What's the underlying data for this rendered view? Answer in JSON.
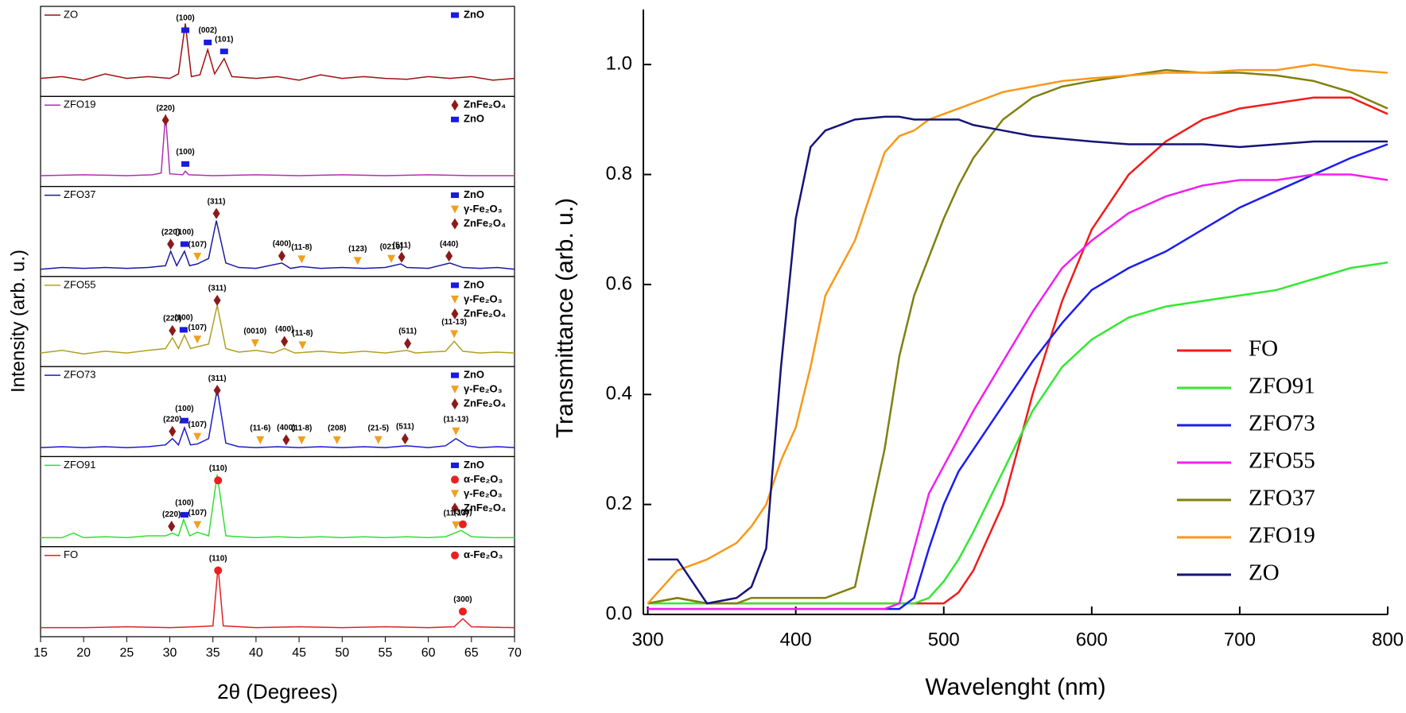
{
  "chart_data": [
    {
      "type": "xrd-stack",
      "y_label": "Intensity (arb. u.)",
      "x_label": "2θ (Degrees)",
      "xlim": [
        15,
        70
      ],
      "xticks": [
        15,
        20,
        25,
        30,
        35,
        40,
        45,
        50,
        55,
        60,
        65,
        70
      ],
      "markers": {
        "ZnO": {
          "shape": "square",
          "color": "#1a1ae0"
        },
        "ZnFe₂O₄": {
          "shape": "diamond",
          "color": "#8b1a1a"
        },
        "γ-Fe₂O₃": {
          "shape": "triangle",
          "color": "#f0a020"
        },
        "α-Fe₂O₃": {
          "shape": "circle",
          "color": "#e82020"
        }
      },
      "panels": [
        {
          "name": "ZO",
          "color": "#a01010",
          "x": [
            15,
            17.5,
            20,
            22.5,
            25,
            27.5,
            30,
            31,
            31.8,
            32.5,
            33.5,
            34.4,
            35.2,
            36.3,
            37.2,
            40,
            42.5,
            45,
            47.5,
            50,
            52.5,
            55,
            57.5,
            60,
            62.5,
            65,
            67.5,
            70
          ],
          "values": [
            0.2,
            0.22,
            0.18,
            0.25,
            0.2,
            0.22,
            0.2,
            0.25,
            0.81,
            0.22,
            0.24,
            0.52,
            0.25,
            0.42,
            0.22,
            0.2,
            0.22,
            0.18,
            0.24,
            0.2,
            0.22,
            0.2,
            0.19,
            0.22,
            0.2,
            0.22,
            0.18,
            0.2
          ],
          "legend": [
            "ZnO"
          ],
          "annotations": [
            {
              "label": "(100)",
              "x": 31.8,
              "phase": "ZnO"
            },
            {
              "label": "(002)",
              "x": 34.4,
              "phase": "ZnO"
            },
            {
              "label": "(101)",
              "x": 36.3,
              "phase": "ZnO"
            }
          ]
        },
        {
          "name": "ZFO19",
          "color": "#b030b0",
          "x": [
            15,
            20,
            25,
            28,
            29,
            29.5,
            30,
            31.5,
            31.8,
            32.2,
            35,
            40,
            45,
            50,
            55,
            60,
            65,
            70
          ],
          "values": [
            0.12,
            0.13,
            0.12,
            0.13,
            0.15,
            0.8,
            0.14,
            0.13,
            0.17,
            0.13,
            0.12,
            0.13,
            0.12,
            0.13,
            0.12,
            0.13,
            0.12,
            0.12
          ],
          "legend": [
            "ZnFe₂O₄",
            "ZnO"
          ],
          "annotations": [
            {
              "label": "(220)",
              "x": 29.5,
              "phase": "ZnFe₂O₄"
            },
            {
              "label": "(100)",
              "x": 31.8,
              "phase": "ZnO"
            }
          ]
        },
        {
          "name": "ZFO37",
          "color": "#1a1aa0",
          "x": [
            15,
            17.5,
            20,
            22.5,
            25,
            27.5,
            29.5,
            30.1,
            30.8,
            31.7,
            32.3,
            33.2,
            34.5,
            35.4,
            36.5,
            38,
            40,
            43,
            44,
            45.3,
            47.5,
            50,
            52.5,
            55,
            56.8,
            57.5,
            60,
            62.5,
            64,
            66,
            68,
            70
          ],
          "values": [
            0.08,
            0.1,
            0.09,
            0.1,
            0.09,
            0.1,
            0.12,
            0.28,
            0.12,
            0.28,
            0.12,
            0.14,
            0.2,
            0.62,
            0.15,
            0.1,
            0.09,
            0.15,
            0.09,
            0.11,
            0.09,
            0.1,
            0.09,
            0.1,
            0.14,
            0.1,
            0.09,
            0.15,
            0.1,
            0.09,
            0.1,
            0.08
          ],
          "legend": [
            "ZnO",
            "γ-Fe₂O₃",
            "ZnFe₂O₄"
          ],
          "annotations": [
            {
              "label": "(220)",
              "x": 30.1,
              "phase": "ZnFe₂O₄"
            },
            {
              "label": "(100)",
              "x": 31.7,
              "phase": "ZnO"
            },
            {
              "label": "(107)",
              "x": 33.2,
              "phase": "γ-Fe₂O₃"
            },
            {
              "label": "(311)",
              "x": 35.4,
              "phase": "ZnFe₂O₄"
            },
            {
              "label": "(400)",
              "x": 43,
              "phase": "ZnFe₂O₄"
            },
            {
              "label": "(11-8)",
              "x": 45.3,
              "phase": "γ-Fe₂O₃"
            },
            {
              "label": "(123)",
              "x": 51.8,
              "phase": "γ-Fe₂O₃"
            },
            {
              "label": "(0210)",
              "x": 55.7,
              "phase": "γ-Fe₂O₃"
            },
            {
              "label": "(511)",
              "x": 56.9,
              "phase": "ZnFe₂O₄"
            },
            {
              "label": "(440)",
              "x": 62.4,
              "phase": "ZnFe₂O₄"
            }
          ]
        },
        {
          "name": "ZFO55",
          "color": "#b0a020",
          "x": [
            15,
            17.5,
            20,
            22.5,
            25,
            27.5,
            29.5,
            30.3,
            31,
            31.7,
            32.4,
            33.2,
            34.5,
            35.5,
            36.5,
            38,
            40,
            42,
            43.3,
            44.5,
            47.5,
            50,
            52.5,
            55,
            57.5,
            58.5,
            60,
            62,
            63,
            64,
            66,
            68,
            70
          ],
          "values": [
            0.15,
            0.18,
            0.14,
            0.17,
            0.15,
            0.18,
            0.2,
            0.32,
            0.2,
            0.35,
            0.2,
            0.22,
            0.25,
            0.68,
            0.2,
            0.16,
            0.18,
            0.15,
            0.2,
            0.15,
            0.17,
            0.15,
            0.17,
            0.15,
            0.18,
            0.15,
            0.16,
            0.17,
            0.28,
            0.17,
            0.15,
            0.16,
            0.15
          ],
          "legend": [
            "ZnO",
            "γ-Fe₂O₃",
            "ZnFe₂O₄"
          ],
          "annotations": [
            {
              "label": "(220)",
              "x": 30.3,
              "phase": "ZnFe₂O₄"
            },
            {
              "label": "(100)",
              "x": 31.6,
              "phase": "ZnO"
            },
            {
              "label": "(107)",
              "x": 33.2,
              "phase": "γ-Fe₂O₃"
            },
            {
              "label": "(311)",
              "x": 35.5,
              "phase": "ZnFe₂O₄"
            },
            {
              "label": "(0010)",
              "x": 39.9,
              "phase": "γ-Fe₂O₃"
            },
            {
              "label": "(400)",
              "x": 43.3,
              "phase": "ZnFe₂O₄"
            },
            {
              "label": "(11-8)",
              "x": 45.4,
              "phase": "γ-Fe₂O₃"
            },
            {
              "label": "(511)",
              "x": 57.6,
              "phase": "ZnFe₂O₄"
            },
            {
              "label": "(11-13)",
              "x": 63,
              "phase": "γ-Fe₂O₃"
            }
          ]
        },
        {
          "name": "ZFO73",
          "color": "#1a1ad0",
          "x": [
            15,
            17.5,
            20,
            22.5,
            25,
            27.5,
            29.5,
            30.3,
            31,
            31.7,
            32.4,
            33.2,
            34.5,
            35.5,
            36.5,
            38,
            40,
            42.5,
            45,
            47.5,
            50,
            52.5,
            55,
            57.5,
            60,
            62,
            63.2,
            64.5,
            66,
            68,
            70
          ],
          "values": [
            0.1,
            0.11,
            0.1,
            0.11,
            0.1,
            0.11,
            0.13,
            0.2,
            0.13,
            0.32,
            0.13,
            0.14,
            0.2,
            0.75,
            0.15,
            0.11,
            0.1,
            0.11,
            0.1,
            0.11,
            0.1,
            0.11,
            0.1,
            0.12,
            0.1,
            0.12,
            0.2,
            0.12,
            0.1,
            0.11,
            0.1
          ],
          "legend": [
            "ZnO",
            "γ-Fe₂O₃",
            "ZnFe₂O₄"
          ],
          "annotations": [
            {
              "label": "(220)",
              "x": 30.3,
              "phase": "ZnFe₂O₄"
            },
            {
              "label": "(100)",
              "x": 31.7,
              "phase": "ZnO"
            },
            {
              "label": "(107)",
              "x": 33.2,
              "phase": "γ-Fe₂O₃"
            },
            {
              "label": "(311)",
              "x": 35.5,
              "phase": "ZnFe₂O₄"
            },
            {
              "label": "(11-6)",
              "x": 40.5,
              "phase": "γ-Fe₂O₃"
            },
            {
              "label": "(400)",
              "x": 43.5,
              "phase": "ZnFe₂O₄"
            },
            {
              "label": "(11-8)",
              "x": 45.3,
              "phase": "γ-Fe₂O₃"
            },
            {
              "label": "(208)",
              "x": 49.4,
              "phase": "γ-Fe₂O₃"
            },
            {
              "label": "(21-5)",
              "x": 54.2,
              "phase": "γ-Fe₂O₃"
            },
            {
              "label": "(511)",
              "x": 57.3,
              "phase": "ZnFe₂O₄"
            },
            {
              "label": "(11-13)",
              "x": 63.2,
              "phase": "γ-Fe₂O₃"
            }
          ]
        },
        {
          "name": "ZFO91",
          "color": "#30e030",
          "x": [
            15,
            17.5,
            18.8,
            20,
            22.5,
            25,
            27.5,
            29.5,
            30.3,
            31,
            31.6,
            32.3,
            33.2,
            34.5,
            35.5,
            36.5,
            38,
            40,
            42.5,
            45,
            47.5,
            50,
            52.5,
            55,
            57.5,
            60,
            62,
            63.8,
            65,
            67.5,
            70
          ],
          "values": [
            0.1,
            0.1,
            0.15,
            0.1,
            0.11,
            0.1,
            0.12,
            0.12,
            0.15,
            0.12,
            0.3,
            0.12,
            0.16,
            0.12,
            0.8,
            0.12,
            0.11,
            0.1,
            0.11,
            0.1,
            0.11,
            0.1,
            0.11,
            0.1,
            0.11,
            0.1,
            0.11,
            0.18,
            0.11,
            0.1,
            0.1
          ],
          "legend": [
            "ZnO",
            "α-Fe₂O₃",
            "γ-Fe₂O₃",
            "ZnFe₂O₄"
          ],
          "annotations": [
            {
              "label": "(220)",
              "x": 30.2,
              "phase": "ZnFe₂O₄"
            },
            {
              "label": "(100)",
              "x": 31.7,
              "phase": "ZnO"
            },
            {
              "label": "(107)",
              "x": 33.2,
              "phase": "γ-Fe₂O₃"
            },
            {
              "label": "(110)",
              "x": 35.6,
              "phase": "α-Fe₂O₃"
            },
            {
              "label": "(11-13)",
              "x": 63.2,
              "phase": "γ-Fe₂O₃"
            },
            {
              "label": "(300)",
              "x": 64,
              "phase": "α-Fe₂O₃"
            }
          ]
        },
        {
          "name": "FO",
          "color": "#e02020",
          "x": [
            15,
            20,
            25,
            30,
            33,
            35,
            35.6,
            36.2,
            40,
            45,
            50,
            55,
            60,
            63,
            64,
            65,
            70
          ],
          "values": [
            0.1,
            0.1,
            0.11,
            0.1,
            0.11,
            0.12,
            0.78,
            0.12,
            0.1,
            0.11,
            0.1,
            0.11,
            0.1,
            0.11,
            0.2,
            0.11,
            0.1
          ],
          "legend": [
            "α-Fe₂O₃"
          ],
          "annotations": [
            {
              "label": "(110)",
              "x": 35.6,
              "phase": "α-Fe₂O₃"
            },
            {
              "label": "(300)",
              "x": 64,
              "phase": "α-Fe₂O₃"
            }
          ]
        }
      ]
    },
    {
      "type": "line",
      "x_label": "Wavelenght (nm)",
      "y_label": "Transmittance (arb. u.)",
      "xlim": [
        297,
        800
      ],
      "ylim": [
        0,
        1.1
      ],
      "xticks": [
        300,
        400,
        500,
        600,
        700,
        800
      ],
      "yticks": [
        {
          "value": 0,
          "label": "0.0"
        },
        0.2,
        0.4,
        0.6,
        0.8,
        {
          "value": 1,
          "label": "1.0"
        }
      ],
      "legend": "lower right",
      "x": [
        300,
        320,
        340,
        360,
        370,
        380,
        390,
        400,
        410,
        420,
        440,
        460,
        470,
        480,
        490,
        500,
        510,
        520,
        540,
        560,
        580,
        600,
        625,
        650,
        675,
        700,
        725,
        750,
        775,
        800
      ],
      "series": [
        {
          "name": "FO",
          "color": "#f01c1c",
          "values": [
            0.02,
            0.03,
            0.02,
            0.02,
            0.02,
            0.02,
            0.02,
            0.02,
            0.02,
            0.02,
            0.02,
            0.02,
            0.02,
            0.02,
            0.02,
            0.02,
            0.04,
            0.08,
            0.2,
            0.4,
            0.57,
            0.7,
            0.8,
            0.86,
            0.9,
            0.92,
            0.93,
            0.94,
            0.94,
            0.91
          ]
        },
        {
          "name": "ZFO91",
          "color": "#33e833",
          "values": [
            0.02,
            0.02,
            0.02,
            0.02,
            0.02,
            0.02,
            0.02,
            0.02,
            0.02,
            0.02,
            0.02,
            0.02,
            0.02,
            0.02,
            0.03,
            0.06,
            0.1,
            0.15,
            0.26,
            0.37,
            0.45,
            0.5,
            0.54,
            0.56,
            0.57,
            0.58,
            0.59,
            0.61,
            0.63,
            0.64
          ]
        },
        {
          "name": "ZFO73",
          "color": "#1c1cf0",
          "values": [
            0.01,
            0.01,
            0.01,
            0.01,
            0.01,
            0.01,
            0.01,
            0.01,
            0.01,
            0.01,
            0.01,
            0.01,
            0.01,
            0.03,
            0.12,
            0.2,
            0.26,
            0.3,
            0.38,
            0.46,
            0.53,
            0.59,
            0.63,
            0.66,
            0.7,
            0.74,
            0.77,
            0.8,
            0.83,
            0.855
          ]
        },
        {
          "name": "ZFO55",
          "color": "#f020f0",
          "values": [
            0.01,
            0.01,
            0.01,
            0.01,
            0.01,
            0.01,
            0.01,
            0.01,
            0.01,
            0.01,
            0.01,
            0.01,
            0.02,
            0.12,
            0.22,
            0.27,
            0.32,
            0.37,
            0.46,
            0.55,
            0.63,
            0.68,
            0.73,
            0.76,
            0.78,
            0.79,
            0.79,
            0.8,
            0.8,
            0.79
          ]
        },
        {
          "name": "ZFO37",
          "color": "#808010",
          "values": [
            0.02,
            0.03,
            0.02,
            0.02,
            0.03,
            0.03,
            0.03,
            0.03,
            0.03,
            0.03,
            0.05,
            0.3,
            0.47,
            0.58,
            0.65,
            0.72,
            0.78,
            0.83,
            0.9,
            0.94,
            0.96,
            0.97,
            0.98,
            0.99,
            0.985,
            0.985,
            0.98,
            0.97,
            0.95,
            0.92
          ]
        },
        {
          "name": "ZFO19",
          "color": "#f89818",
          "values": [
            0.02,
            0.08,
            0.1,
            0.13,
            0.16,
            0.2,
            0.28,
            0.34,
            0.45,
            0.58,
            0.68,
            0.84,
            0.87,
            0.88,
            0.9,
            0.91,
            0.92,
            0.93,
            0.95,
            0.96,
            0.97,
            0.975,
            0.98,
            0.985,
            0.985,
            0.99,
            0.99,
            1.0,
            0.99,
            0.985
          ]
        },
        {
          "name": "ZO",
          "color": "#141478",
          "values": [
            0.1,
            0.1,
            0.02,
            0.03,
            0.05,
            0.12,
            0.45,
            0.72,
            0.85,
            0.88,
            0.9,
            0.905,
            0.905,
            0.9,
            0.9,
            0.9,
            0.9,
            0.89,
            0.88,
            0.87,
            0.865,
            0.86,
            0.855,
            0.855,
            0.855,
            0.85,
            0.855,
            0.86,
            0.86,
            0.86
          ]
        }
      ]
    }
  ]
}
